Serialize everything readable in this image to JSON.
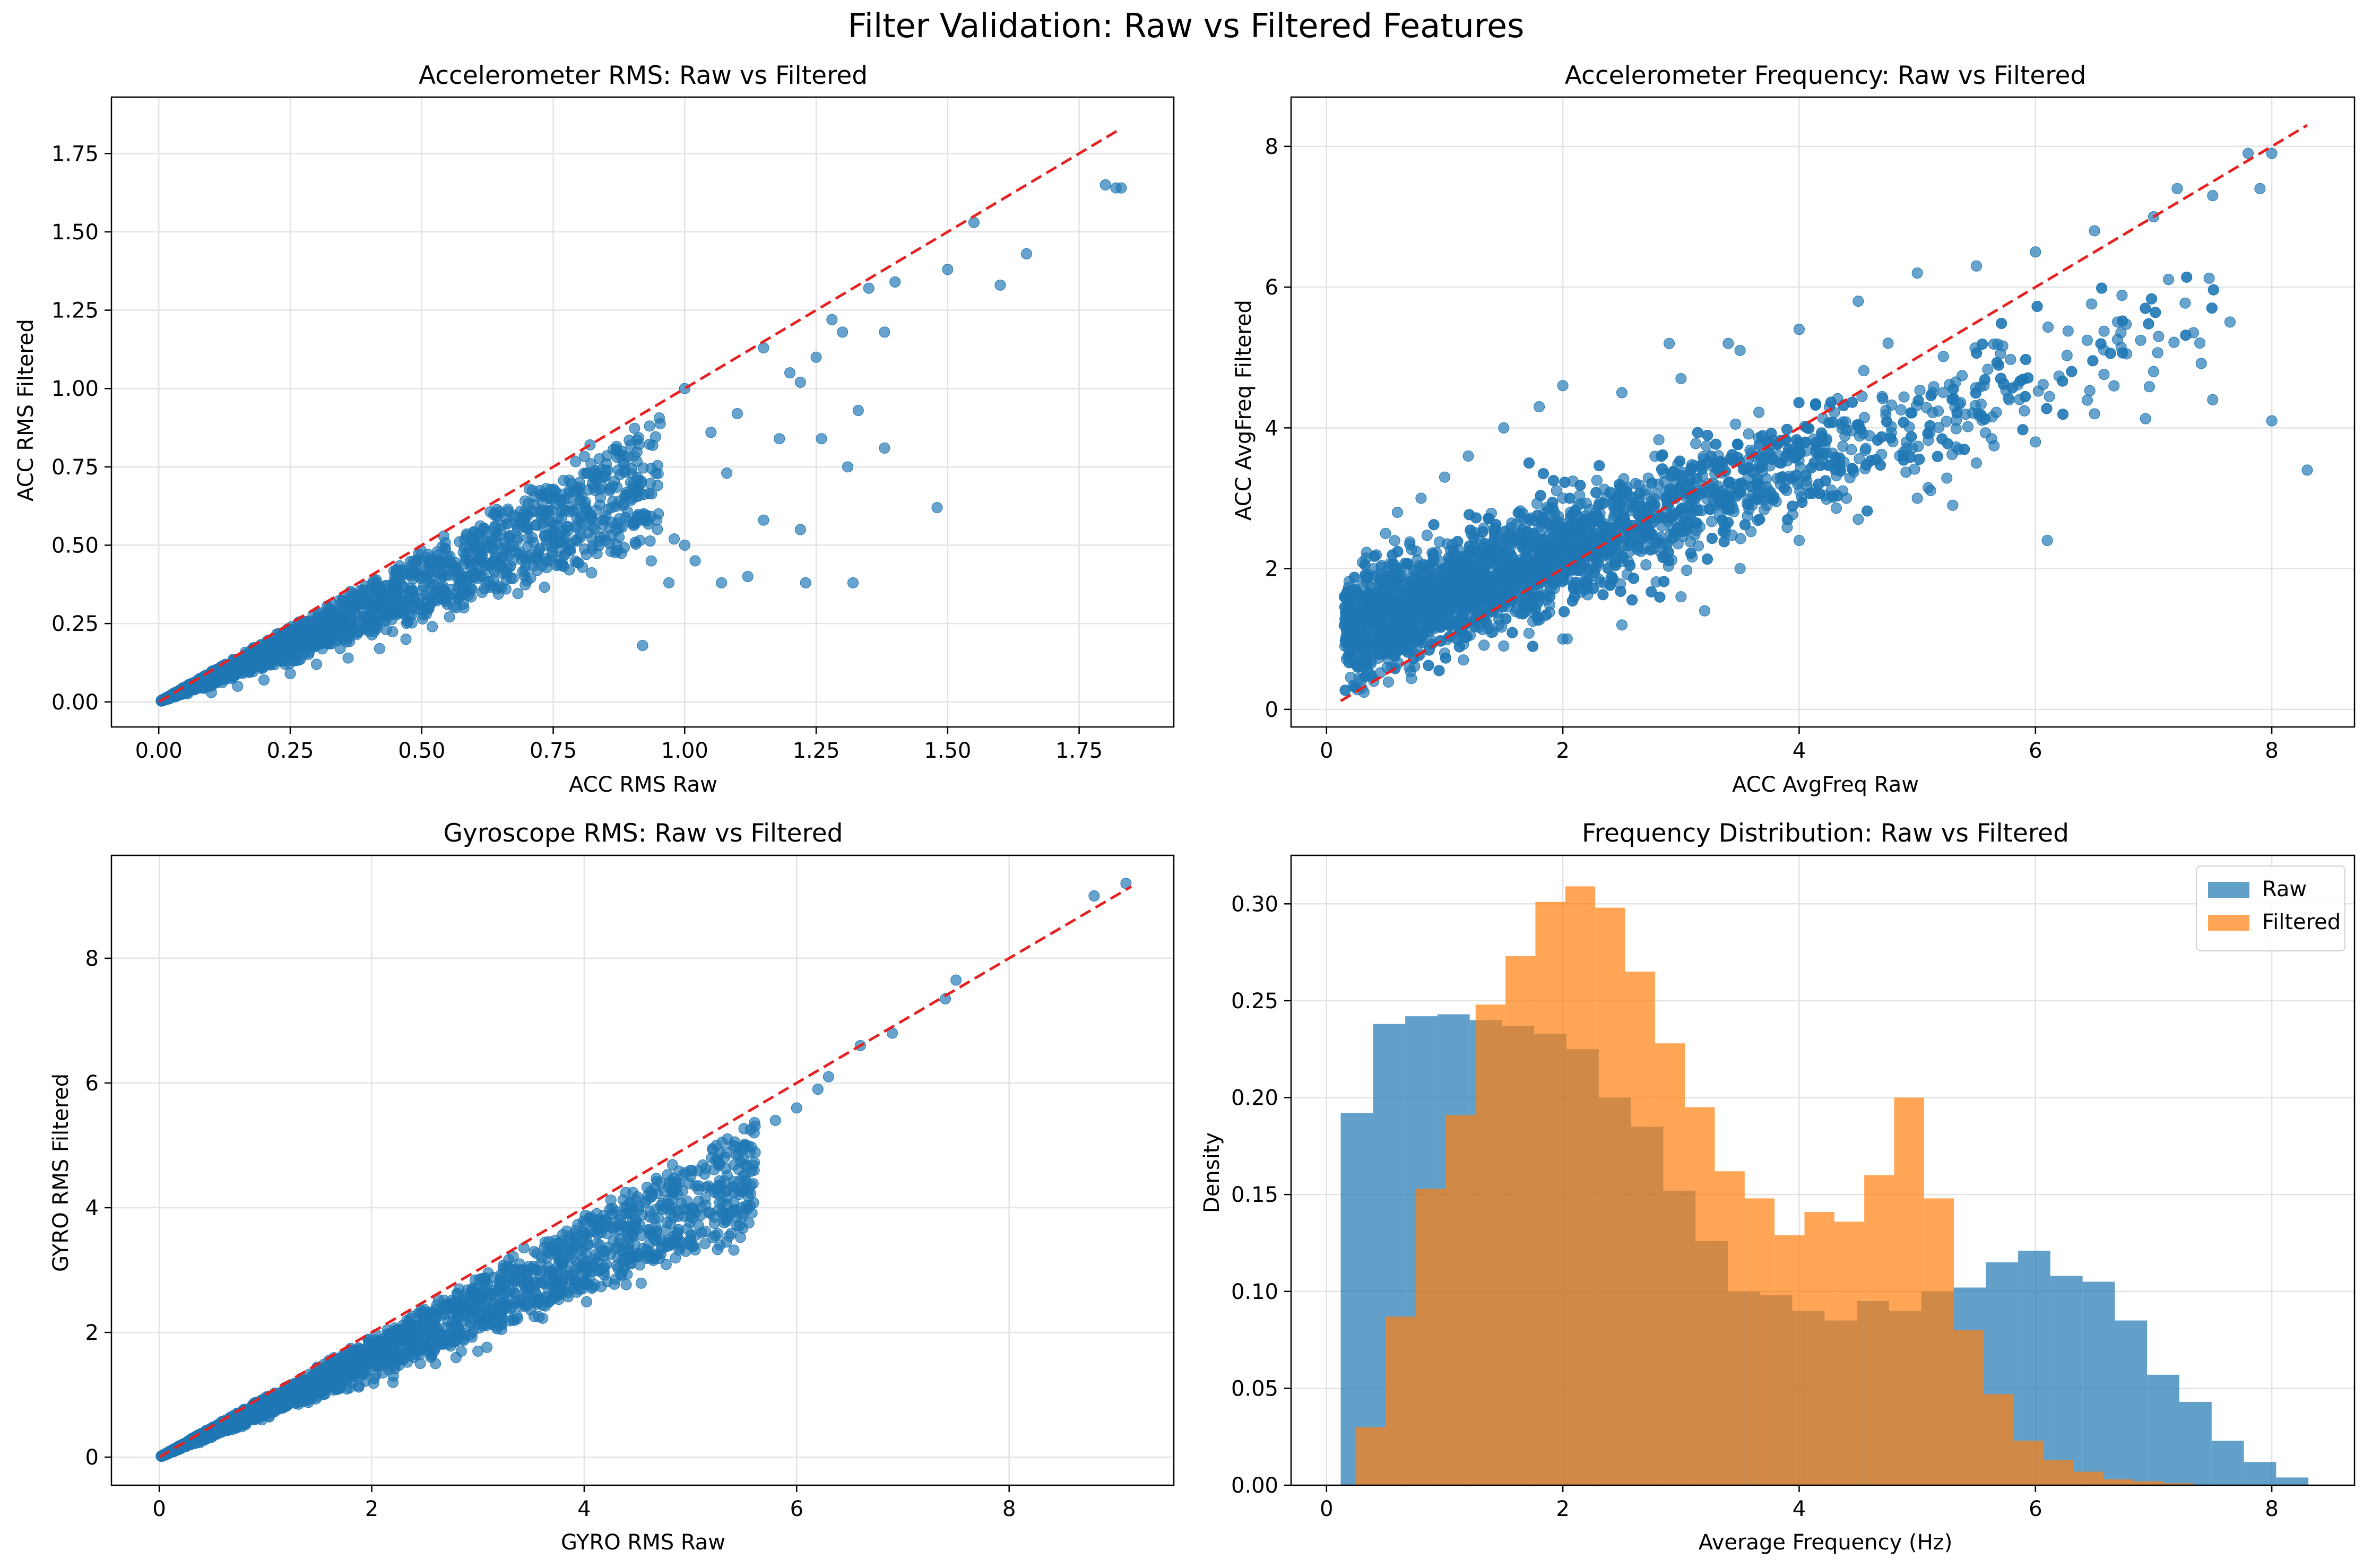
{
  "figure": {
    "suptitle": "Filter Validation: Raw vs Filtered Features"
  },
  "chart_data": [
    {
      "type": "scatter",
      "title": "Accelerometer RMS: Raw vs Filtered",
      "xlabel": "ACC RMS Raw",
      "ylabel": "ACC RMS Filtered",
      "xlim": [
        -0.09,
        1.93
      ],
      "ylim": [
        -0.08,
        1.93
      ],
      "xticks": [
        0.0,
        0.25,
        0.5,
        0.75,
        1.0,
        1.25,
        1.5,
        1.75
      ],
      "xtick_labels": [
        "0.00",
        "0.25",
        "0.50",
        "0.75",
        "1.00",
        "1.25",
        "1.50",
        "1.75"
      ],
      "yticks": [
        0.0,
        0.25,
        0.5,
        0.75,
        1.0,
        1.25,
        1.5,
        1.75
      ],
      "ytick_labels": [
        "0.00",
        "0.25",
        "0.50",
        "0.75",
        "1.00",
        "1.25",
        "1.50",
        "1.75"
      ],
      "grid": true,
      "marker_color": "#1f77b4",
      "reference_line": {
        "label": "y = x",
        "from": [
          0.0,
          0.0
        ],
        "to": [
          1.83,
          1.83
        ],
        "color": "#e62121",
        "style": "dashed"
      },
      "distribution": "dense cloud below y = x, filtered ≈ 0.75 × raw with spread growing with raw value",
      "points": [
        [
          0.02,
          0.01
        ],
        [
          0.05,
          0.03
        ],
        [
          0.08,
          0.06
        ],
        [
          0.12,
          0.09
        ],
        [
          0.15,
          0.12
        ],
        [
          0.2,
          0.16
        ],
        [
          0.25,
          0.2
        ],
        [
          0.3,
          0.24
        ],
        [
          0.35,
          0.28
        ],
        [
          0.4,
          0.32
        ],
        [
          0.45,
          0.36
        ],
        [
          0.5,
          0.4
        ],
        [
          0.55,
          0.45
        ],
        [
          0.6,
          0.5
        ],
        [
          0.65,
          0.55
        ],
        [
          0.7,
          0.6
        ],
        [
          0.75,
          0.65
        ],
        [
          0.8,
          0.7
        ],
        [
          0.82,
          0.82
        ],
        [
          0.85,
          0.72
        ],
        [
          0.88,
          0.8
        ],
        [
          0.9,
          0.65
        ],
        [
          0.92,
          0.58
        ],
        [
          0.95,
          0.6
        ],
        [
          0.98,
          0.52
        ],
        [
          1.0,
          0.5
        ],
        [
          1.0,
          1.0
        ],
        [
          1.02,
          0.45
        ],
        [
          1.05,
          0.86
        ],
        [
          1.08,
          0.73
        ],
        [
          1.1,
          0.92
        ],
        [
          1.12,
          0.4
        ],
        [
          1.15,
          1.13
        ],
        [
          1.15,
          0.58
        ],
        [
          1.18,
          0.84
        ],
        [
          1.2,
          1.05
        ],
        [
          1.22,
          1.02
        ],
        [
          1.22,
          0.55
        ],
        [
          1.23,
          0.38
        ],
        [
          1.25,
          1.1
        ],
        [
          1.26,
          0.84
        ],
        [
          1.28,
          1.22
        ],
        [
          1.3,
          1.18
        ],
        [
          1.31,
          0.75
        ],
        [
          1.32,
          0.38
        ],
        [
          1.33,
          0.93
        ],
        [
          1.35,
          1.32
        ],
        [
          1.38,
          1.18
        ],
        [
          1.38,
          0.81
        ],
        [
          1.4,
          1.34
        ],
        [
          1.48,
          0.62
        ],
        [
          1.5,
          1.38
        ],
        [
          1.55,
          1.53
        ],
        [
          1.6,
          1.33
        ],
        [
          1.65,
          1.43
        ],
        [
          1.8,
          1.65
        ],
        [
          1.82,
          1.64
        ],
        [
          1.83,
          1.64
        ],
        [
          0.92,
          0.18
        ],
        [
          0.97,
          0.38
        ],
        [
          1.07,
          0.38
        ],
        [
          0.86,
          0.48
        ],
        [
          0.72,
          0.42
        ],
        [
          0.66,
          0.36
        ],
        [
          0.58,
          0.3
        ],
        [
          0.52,
          0.24
        ],
        [
          0.47,
          0.2
        ],
        [
          0.42,
          0.17
        ],
        [
          0.36,
          0.14
        ],
        [
          0.3,
          0.12
        ],
        [
          0.25,
          0.09
        ],
        [
          0.2,
          0.07
        ],
        [
          0.15,
          0.05
        ],
        [
          0.1,
          0.03
        ]
      ]
    },
    {
      "type": "scatter",
      "title": "Accelerometer Frequency: Raw vs Filtered",
      "xlabel": "ACC AvgFreq Raw",
      "ylabel": "ACC AvgFreq Filtered",
      "xlim": [
        -0.3,
        8.7
      ],
      "ylim": [
        -0.25,
        8.7
      ],
      "xticks": [
        0,
        2,
        4,
        6,
        8
      ],
      "xtick_labels": [
        "0",
        "2",
        "4",
        "6",
        "8"
      ],
      "yticks": [
        0,
        2,
        4,
        6,
        8
      ],
      "ytick_labels": [
        "0",
        "2",
        "4",
        "6",
        "8"
      ],
      "grid": true,
      "marker_color": "#1f77b4",
      "reference_line": {
        "label": "y = x",
        "from": [
          0.12,
          0.12
        ],
        "to": [
          8.3,
          8.3
        ],
        "color": "#e62121",
        "style": "dashed"
      },
      "distribution": "dense band, filtered ≈ 1.0 + 0.6 × raw, above y = x for low frequencies and below it above ~3",
      "points": [
        [
          0.2,
          0.8
        ],
        [
          0.3,
          1.5
        ],
        [
          0.4,
          2.0
        ],
        [
          0.5,
          2.5
        ],
        [
          0.6,
          2.8
        ],
        [
          0.8,
          3.0
        ],
        [
          1.0,
          3.3
        ],
        [
          1.2,
          3.6
        ],
        [
          1.5,
          4.0
        ],
        [
          1.8,
          4.3
        ],
        [
          2.0,
          4.6
        ],
        [
          2.5,
          4.5
        ],
        [
          3.0,
          4.7
        ],
        [
          3.5,
          5.1
        ],
        [
          4.0,
          5.4
        ],
        [
          4.5,
          5.8
        ],
        [
          5.0,
          6.2
        ],
        [
          5.5,
          6.3
        ],
        [
          6.0,
          6.5
        ],
        [
          6.5,
          6.8
        ],
        [
          7.0,
          7.0
        ],
        [
          7.2,
          7.4
        ],
        [
          7.5,
          7.3
        ],
        [
          7.8,
          7.9
        ],
        [
          7.9,
          7.4
        ],
        [
          8.0,
          7.9
        ],
        [
          8.0,
          4.1
        ],
        [
          8.3,
          3.4
        ],
        [
          7.5,
          4.4
        ],
        [
          7.0,
          4.8
        ],
        [
          6.5,
          4.2
        ],
        [
          6.0,
          3.8
        ],
        [
          5.5,
          3.5
        ],
        [
          5.0,
          3.0
        ],
        [
          4.5,
          2.7
        ],
        [
          4.0,
          2.4
        ],
        [
          3.5,
          2.0
        ],
        [
          3.0,
          1.6
        ],
        [
          2.5,
          1.2
        ],
        [
          2.0,
          1.0
        ],
        [
          1.5,
          0.9
        ],
        [
          1.0,
          0.8
        ],
        [
          0.7,
          0.6
        ],
        [
          0.4,
          0.4
        ],
        [
          0.3,
          0.3
        ],
        [
          3.2,
          1.4
        ],
        [
          6.1,
          2.4
        ],
        [
          4.4,
          3.0
        ],
        [
          5.3,
          2.9
        ],
        [
          2.9,
          5.2
        ],
        [
          3.4,
          5.2
        ]
      ]
    },
    {
      "type": "scatter",
      "title": "Gyroscope RMS: Raw vs Filtered",
      "xlabel": "GYRO RMS Raw",
      "ylabel": "GYRO RMS Filtered",
      "xlim": [
        -0.45,
        9.55
      ],
      "ylim": [
        -0.45,
        9.65
      ],
      "xticks": [
        0,
        2,
        4,
        6,
        8
      ],
      "xtick_labels": [
        "0",
        "2",
        "4",
        "6",
        "8"
      ],
      "yticks": [
        0,
        2,
        4,
        6,
        8
      ],
      "ytick_labels": [
        "0",
        "2",
        "4",
        "6",
        "8"
      ],
      "grid": true,
      "marker_color": "#1f77b4",
      "reference_line": {
        "label": "y = x",
        "from": [
          0.0,
          0.0
        ],
        "to": [
          9.15,
          9.15
        ],
        "color": "#e62121",
        "style": "dashed"
      },
      "distribution": "dense band just below y = x, filtered ≈ 0.85 × raw",
      "points": [
        [
          0.05,
          0.03
        ],
        [
          0.2,
          0.15
        ],
        [
          0.4,
          0.3
        ],
        [
          0.6,
          0.45
        ],
        [
          0.8,
          0.6
        ],
        [
          1.0,
          0.8
        ],
        [
          1.2,
          1.0
        ],
        [
          1.4,
          1.15
        ],
        [
          1.6,
          1.3
        ],
        [
          1.8,
          1.5
        ],
        [
          2.0,
          1.7
        ],
        [
          2.2,
          1.85
        ],
        [
          2.4,
          2.0
        ],
        [
          2.6,
          2.2
        ],
        [
          2.8,
          2.4
        ],
        [
          3.0,
          2.6
        ],
        [
          3.2,
          2.8
        ],
        [
          3.4,
          3.0
        ],
        [
          3.6,
          3.2
        ],
        [
          3.8,
          3.4
        ],
        [
          4.0,
          3.6
        ],
        [
          4.2,
          3.8
        ],
        [
          4.4,
          4.0
        ],
        [
          4.6,
          4.2
        ],
        [
          4.8,
          4.4
        ],
        [
          5.0,
          4.6
        ],
        [
          5.2,
          4.8
        ],
        [
          5.4,
          5.0
        ],
        [
          5.6,
          5.2
        ],
        [
          5.8,
          5.4
        ],
        [
          6.0,
          5.6
        ],
        [
          6.2,
          5.9
        ],
        [
          6.3,
          6.1
        ],
        [
          6.6,
          6.6
        ],
        [
          6.9,
          6.8
        ],
        [
          7.4,
          7.35
        ],
        [
          7.5,
          7.65
        ],
        [
          8.8,
          9.0
        ],
        [
          9.1,
          9.2
        ],
        [
          4.0,
          2.8
        ],
        [
          3.0,
          1.7
        ],
        [
          2.6,
          1.5
        ],
        [
          2.2,
          1.2
        ],
        [
          5.2,
          4.3
        ],
        [
          3.8,
          3.1
        ],
        [
          4.2,
          3.3
        ],
        [
          5.6,
          4.6
        ]
      ]
    },
    {
      "type": "histogram",
      "title": "Frequency Distribution: Raw vs Filtered",
      "xlabel": "Average Frequency (Hz)",
      "ylabel": "Density",
      "xlim": [
        -0.3,
        8.7
      ],
      "ylim": [
        0,
        0.325
      ],
      "xticks": [
        0,
        2,
        4,
        6,
        8
      ],
      "xtick_labels": [
        "0",
        "2",
        "4",
        "6",
        "8"
      ],
      "yticks": [
        0,
        0.05,
        0.1,
        0.15,
        0.2,
        0.25,
        0.3
      ],
      "ytick_labels": [
        "0.00",
        "0.05",
        "0.10",
        "0.15",
        "0.20",
        "0.25",
        "0.30"
      ],
      "grid": true,
      "legend_position": "upper right",
      "series": [
        {
          "name": "Raw",
          "color": "#1f77b4",
          "alpha": 0.7,
          "bin_start": 0.12,
          "bin_width": 0.273,
          "values": [
            0.192,
            0.238,
            0.242,
            0.243,
            0.24,
            0.237,
            0.233,
            0.225,
            0.2,
            0.185,
            0.152,
            0.126,
            0.1,
            0.098,
            0.09,
            0.085,
            0.095,
            0.09,
            0.1,
            0.102,
            0.115,
            0.121,
            0.108,
            0.105,
            0.085,
            0.057,
            0.043,
            0.023,
            0.012,
            0.004
          ]
        },
        {
          "name": "Filtered",
          "color": "#ff7f0e",
          "alpha": 0.7,
          "bin_start": 0.25,
          "bin_width": 0.253,
          "values": [
            0.03,
            0.087,
            0.153,
            0.191,
            0.248,
            0.273,
            0.301,
            0.309,
            0.298,
            0.265,
            0.228,
            0.195,
            0.162,
            0.148,
            0.129,
            0.141,
            0.136,
            0.16,
            0.2,
            0.148,
            0.08,
            0.047,
            0.023,
            0.013,
            0.007,
            0.003,
            0.002,
            0.001
          ]
        }
      ]
    }
  ]
}
